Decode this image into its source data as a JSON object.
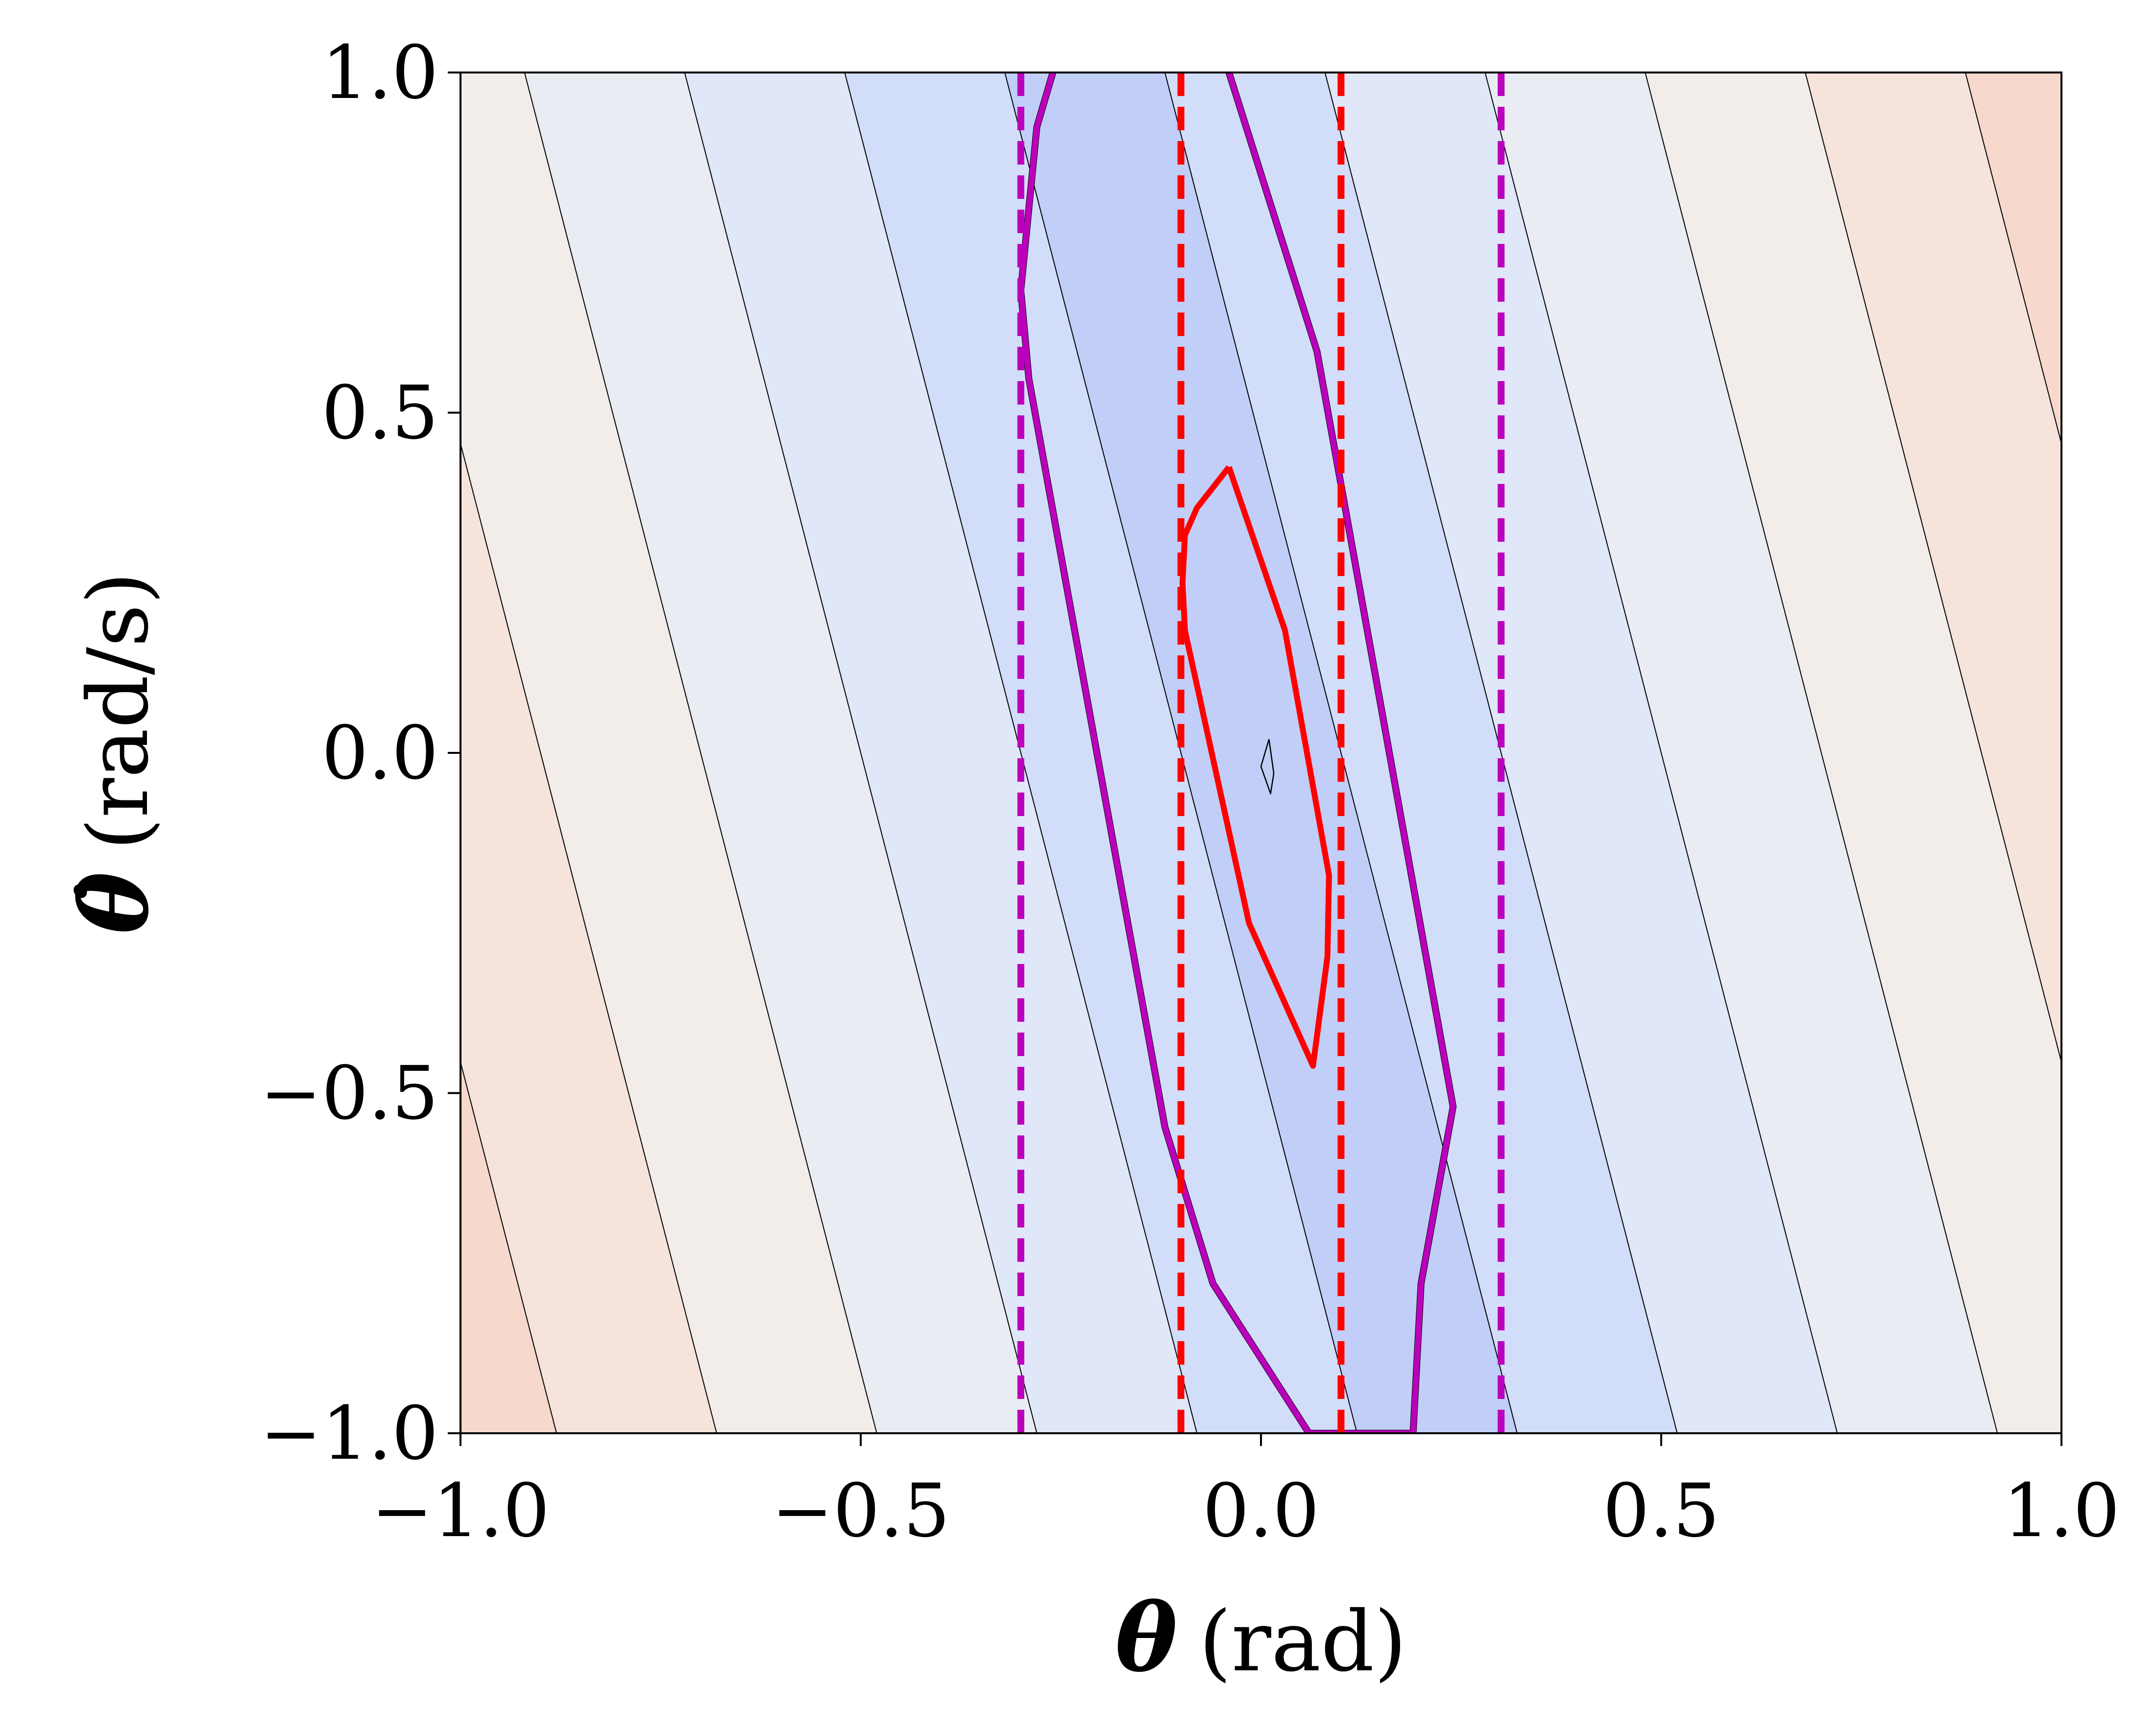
{
  "chart_data": {
    "type": "contour",
    "xlabel": {
      "symbol": "θ",
      "unit": "(rad)"
    },
    "ylabel": {
      "symbol": "θ̇",
      "unit": "(rad/s)"
    },
    "xlim": [
      -1.0,
      1.0
    ],
    "ylim": [
      -1.0,
      1.0
    ],
    "xticks": [
      "−1.0",
      "−0.5",
      "0.0",
      "0.5",
      "1.0"
    ],
    "xtick_values": [
      -1.0,
      -0.5,
      0.0,
      0.5,
      1.0
    ],
    "yticks": [
      "−1.0",
      "−0.5",
      "0.0",
      "0.5",
      "1.0"
    ],
    "ytick_values": [
      -1.0,
      -0.5,
      0.0,
      0.5,
      1.0
    ],
    "grid": false,
    "contour_field": {
      "description_form": "filled contour bands of a field that increases with |theta + 0.22*theta_dot|",
      "level_values": [
        0.0,
        0.1,
        0.3,
        0.5,
        0.7,
        0.9,
        1.1,
        1.3
      ],
      "band_colors": [
        "#c1cef7",
        "#d1ddf9",
        "#dfe7f8",
        "#e9edf3",
        "#f2ede9",
        "#f6e4dc",
        "#f6d8cc",
        "#f0c6bb"
      ]
    },
    "inner_contour": {
      "color": "#000000",
      "points": [
        [
          0.01,
          0.02
        ],
        [
          0.0,
          -0.02
        ],
        [
          0.012,
          -0.06
        ],
        [
          0.016,
          -0.03
        ],
        [
          0.01,
          0.02
        ]
      ]
    },
    "magenta_contour": {
      "color": "#bb00bb",
      "points": [
        [
          -0.26,
          1.0
        ],
        [
          -0.28,
          0.92
        ],
        [
          -0.3,
          0.68
        ],
        [
          -0.29,
          0.55
        ],
        [
          -0.12,
          -0.55
        ],
        [
          -0.06,
          -0.78
        ],
        [
          0.06,
          -1.0
        ],
        [
          0.19,
          -1.0
        ],
        [
          0.2,
          -0.78
        ],
        [
          0.24,
          -0.52
        ],
        [
          0.07,
          0.59
        ],
        [
          -0.04,
          1.0
        ]
      ]
    },
    "red_contour": {
      "color": "#ff0000",
      "points": [
        [
          -0.04,
          0.42
        ],
        [
          -0.08,
          0.36
        ],
        [
          -0.095,
          0.32
        ],
        [
          -0.098,
          0.25
        ],
        [
          -0.095,
          0.18
        ],
        [
          -0.015,
          -0.25
        ],
        [
          0.065,
          -0.46
        ],
        [
          0.083,
          -0.3
        ],
        [
          0.085,
          -0.18
        ],
        [
          0.03,
          0.18
        ],
        [
          -0.04,
          0.42
        ]
      ]
    },
    "reference_lines": [
      {
        "x": -0.3,
        "color": "#bb00bb",
        "style": "dashed"
      },
      {
        "x": 0.3,
        "color": "#bb00bb",
        "style": "dashed"
      },
      {
        "x": -0.1,
        "color": "#ff0000",
        "style": "dashed"
      },
      {
        "x": 0.1,
        "color": "#ff0000",
        "style": "dashed"
      }
    ]
  }
}
